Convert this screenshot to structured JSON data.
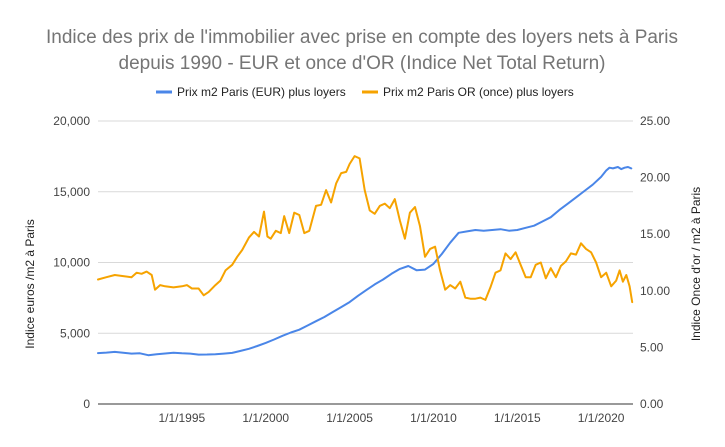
{
  "chart_data": {
    "type": "line",
    "title_line1": "Indice des prix de l'immobilier avec prise en compte des loyers nets à Paris",
    "title_line2": "depuis 1990 - EUR et once d'OR (Indice Net Total Return)",
    "ylabel_left": "Indice euros /m2 à Paris",
    "ylabel_right": "Indice Once d'or / m2 à Paris",
    "xlim": [
      1990.0,
      2021.9
    ],
    "ylim_left": [
      0,
      20000
    ],
    "ylim_right": [
      0,
      25
    ],
    "grid": true,
    "legend_position": "top",
    "x_ticks": [
      {
        "label": "1/1/1995",
        "x": 1995
      },
      {
        "label": "1/1/2000",
        "x": 2000
      },
      {
        "label": "1/1/2005",
        "x": 2005
      },
      {
        "label": "1/1/2010",
        "x": 2010
      },
      {
        "label": "1/1/2015",
        "x": 2015
      },
      {
        "label": "1/1/2020",
        "x": 2020
      }
    ],
    "y_ticks_left": [
      {
        "label": "0",
        "value": 0
      },
      {
        "label": "5,000",
        "value": 5000
      },
      {
        "label": "10,000",
        "value": 10000
      },
      {
        "label": "15,000",
        "value": 15000
      },
      {
        "label": "20,000",
        "value": 20000
      }
    ],
    "y_ticks_right": [
      {
        "label": "0.00",
        "value": 0
      },
      {
        "label": "5.00",
        "value": 5
      },
      {
        "label": "10.00",
        "value": 10
      },
      {
        "label": "15.00",
        "value": 15
      },
      {
        "label": "20.00",
        "value": 20
      },
      {
        "label": "25.00",
        "value": 25
      }
    ],
    "series": [
      {
        "name": "Prix m2 Paris (EUR) plus loyers",
        "color": "#4a86e8",
        "axis": "left",
        "x": [
          1990.0,
          1990.5,
          1991.0,
          1991.5,
          1992.0,
          1992.5,
          1993.0,
          1993.5,
          1994.0,
          1994.5,
          1995.0,
          1995.5,
          1996.0,
          1996.5,
          1997.0,
          1997.5,
          1998.0,
          1998.5,
          1999.0,
          1999.5,
          2000.0,
          2000.5,
          2001.0,
          2001.5,
          2002.0,
          2002.5,
          2003.0,
          2003.5,
          2004.0,
          2004.5,
          2005.0,
          2005.5,
          2006.0,
          2006.5,
          2007.0,
          2007.5,
          2008.0,
          2008.5,
          2009.0,
          2009.5,
          2010.0,
          2010.5,
          2011.0,
          2011.5,
          2012.0,
          2012.5,
          2013.0,
          2013.5,
          2014.0,
          2014.5,
          2015.0,
          2015.5,
          2016.0,
          2016.5,
          2017.0,
          2017.5,
          2018.0,
          2018.5,
          2019.0,
          2019.5,
          2020.0,
          2020.3,
          2020.5,
          2020.7,
          2021.0,
          2021.2,
          2021.4,
          2021.6,
          2021.8
        ],
        "values": [
          3600,
          3630,
          3680,
          3620,
          3560,
          3580,
          3450,
          3520,
          3570,
          3620,
          3580,
          3560,
          3490,
          3500,
          3520,
          3560,
          3610,
          3750,
          3900,
          4100,
          4320,
          4560,
          4820,
          5050,
          5250,
          5550,
          5850,
          6150,
          6500,
          6850,
          7200,
          7650,
          8050,
          8450,
          8800,
          9200,
          9550,
          9750,
          9450,
          9500,
          9900,
          10600,
          11400,
          12100,
          12200,
          12300,
          12250,
          12300,
          12350,
          12250,
          12300,
          12450,
          12600,
          12900,
          13200,
          13700,
          14150,
          14600,
          15050,
          15500,
          16050,
          16500,
          16700,
          16650,
          16750,
          16600,
          16700,
          16750,
          16650
        ]
      },
      {
        "name": "Prix m2 Paris OR (once) plus loyers",
        "color": "#f6a300",
        "axis": "right",
        "x": [
          1990.0,
          1990.5,
          1991.0,
          1991.5,
          1992.0,
          1992.3,
          1992.6,
          1992.9,
          1993.2,
          1993.4,
          1993.7,
          1994.0,
          1994.5,
          1995.0,
          1995.3,
          1995.6,
          1996.0,
          1996.3,
          1996.6,
          1997.0,
          1997.3,
          1997.6,
          1998.0,
          1998.3,
          1998.6,
          1999.0,
          1999.3,
          1999.6,
          1999.9,
          2000.1,
          2000.3,
          2000.6,
          2000.9,
          2001.1,
          2001.4,
          2001.7,
          2002.0,
          2002.3,
          2002.6,
          2003.0,
          2003.3,
          2003.6,
          2003.9,
          2004.2,
          2004.5,
          2004.8,
          2005.0,
          2005.3,
          2005.6,
          2005.9,
          2006.2,
          2006.5,
          2006.8,
          2007.1,
          2007.4,
          2007.7,
          2008.0,
          2008.3,
          2008.6,
          2008.9,
          2009.2,
          2009.5,
          2009.8,
          2010.1,
          2010.4,
          2010.7,
          2011.0,
          2011.3,
          2011.6,
          2011.9,
          2012.2,
          2012.5,
          2012.8,
          2013.1,
          2013.4,
          2013.7,
          2014.0,
          2014.3,
          2014.6,
          2014.9,
          2015.2,
          2015.5,
          2015.8,
          2016.1,
          2016.4,
          2016.7,
          2017.0,
          2017.3,
          2017.6,
          2017.9,
          2018.2,
          2018.5,
          2018.8,
          2019.1,
          2019.4,
          2019.7,
          2020.0,
          2020.3,
          2020.6,
          2020.9,
          2021.1,
          2021.3,
          2021.5,
          2021.7,
          2021.85
        ],
        "values": [
          11.0,
          11.2,
          11.4,
          11.3,
          11.2,
          11.6,
          11.5,
          11.7,
          11.4,
          10.1,
          10.5,
          10.4,
          10.3,
          10.4,
          10.5,
          10.2,
          10.2,
          9.6,
          9.9,
          10.5,
          10.9,
          11.8,
          12.3,
          13.0,
          13.6,
          14.7,
          15.2,
          14.8,
          17.0,
          14.8,
          14.6,
          15.3,
          15.1,
          16.6,
          15.1,
          16.9,
          16.7,
          15.1,
          15.3,
          17.5,
          17.6,
          18.9,
          17.8,
          19.5,
          20.4,
          20.5,
          21.2,
          21.9,
          21.7,
          18.9,
          17.1,
          16.8,
          17.5,
          17.7,
          17.3,
          18.1,
          16.2,
          14.6,
          16.9,
          17.4,
          15.7,
          13.0,
          13.7,
          13.9,
          11.8,
          10.1,
          10.5,
          10.2,
          10.8,
          9.4,
          9.3,
          9.3,
          9.4,
          9.2,
          10.3,
          11.6,
          11.8,
          13.3,
          12.8,
          13.4,
          12.3,
          11.2,
          11.2,
          12.3,
          12.5,
          11.1,
          12.0,
          11.2,
          12.2,
          12.6,
          13.3,
          13.2,
          14.2,
          13.7,
          13.4,
          12.5,
          11.2,
          11.6,
          10.4,
          10.9,
          11.8,
          10.8,
          11.4,
          10.4,
          9.0
        ]
      }
    ]
  }
}
